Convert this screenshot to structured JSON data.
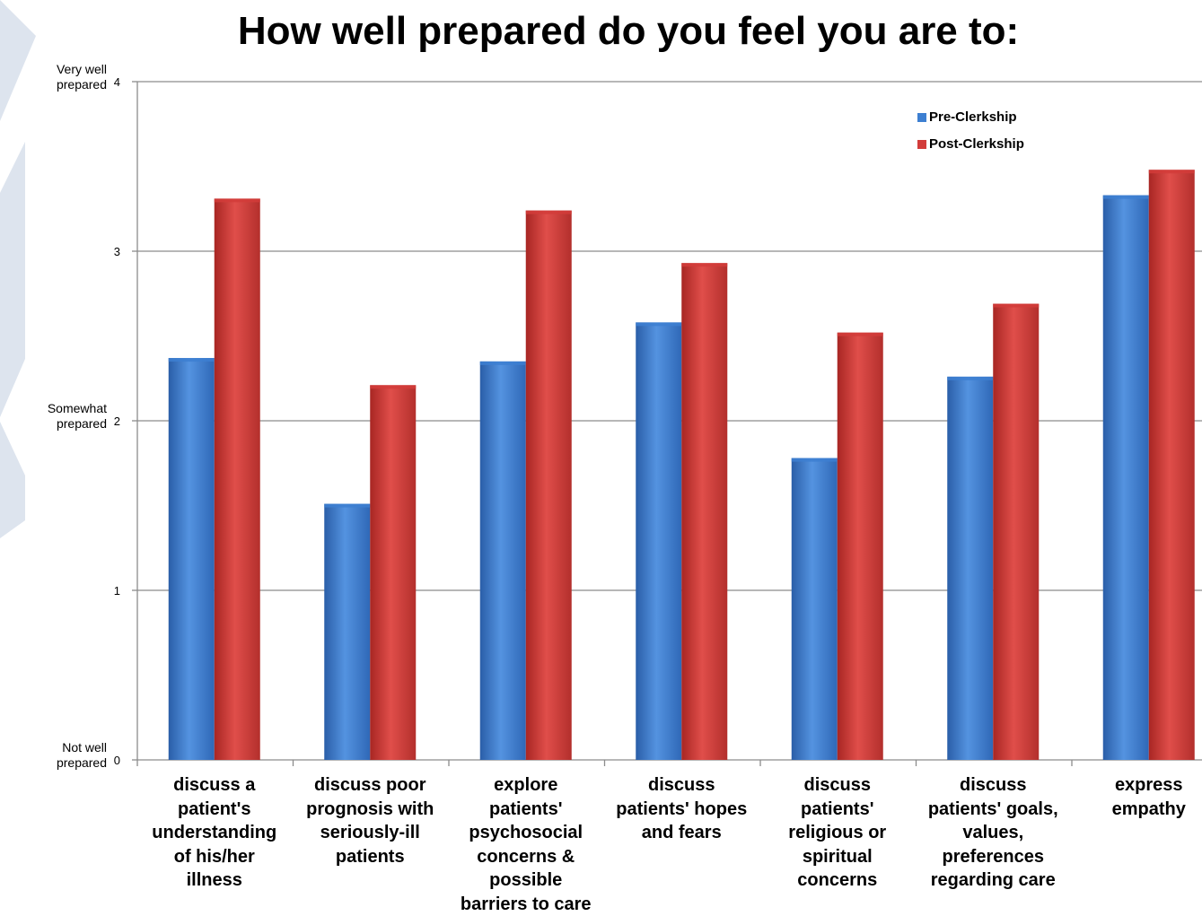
{
  "chart_data": {
    "type": "bar",
    "title": "How well prepared do you feel you are to:",
    "categories": [
      "discuss a patient's understanding of his/her illness",
      "discuss poor prognosis with seriously-ill patients",
      "explore patients' psychosocial concerns & possible barriers to care",
      "discuss patients' hopes and fears",
      "discuss patients' religious or spiritual concerns",
      "discuss patients' goals, values, preferences regarding care",
      "express empathy"
    ],
    "category_lines": [
      [
        "discuss a",
        "patient's",
        "understanding",
        "of his/her",
        "illness"
      ],
      [
        "discuss poor",
        "prognosis with",
        "seriously-ill",
        "patients"
      ],
      [
        "explore",
        "patients'",
        "psychosocial",
        "concerns &",
        "possible",
        "barriers to care"
      ],
      [
        "discuss",
        "patients' hopes",
        "and fears"
      ],
      [
        "discuss",
        "patients'",
        "religious or",
        "spiritual",
        "concerns"
      ],
      [
        "discuss",
        "patients' goals,",
        "values,",
        "preferences",
        "regarding care"
      ],
      [
        "express",
        "empathy"
      ]
    ],
    "series": [
      {
        "name": "Pre-Clerkship",
        "color": "#3d7fd1",
        "values": [
          2.37,
          1.51,
          2.35,
          2.58,
          1.78,
          2.26,
          3.33
        ]
      },
      {
        "name": "Post-Clerkship",
        "color": "#d23c3a",
        "values": [
          3.31,
          2.21,
          3.24,
          2.93,
          2.52,
          2.69,
          3.48
        ]
      }
    ],
    "ylim": [
      0,
      4
    ],
    "yticks": [
      "0",
      "1",
      "2",
      "3",
      "4"
    ],
    "ylevel_labels": [
      {
        "value": 4,
        "lines": [
          "Very well",
          "prepared"
        ]
      },
      {
        "value": 2,
        "lines": [
          "Somewhat",
          "prepared"
        ]
      },
      {
        "value": 0,
        "lines": [
          "Not well",
          "prepared"
        ]
      }
    ],
    "grid": true,
    "legend_position": "top-right"
  }
}
